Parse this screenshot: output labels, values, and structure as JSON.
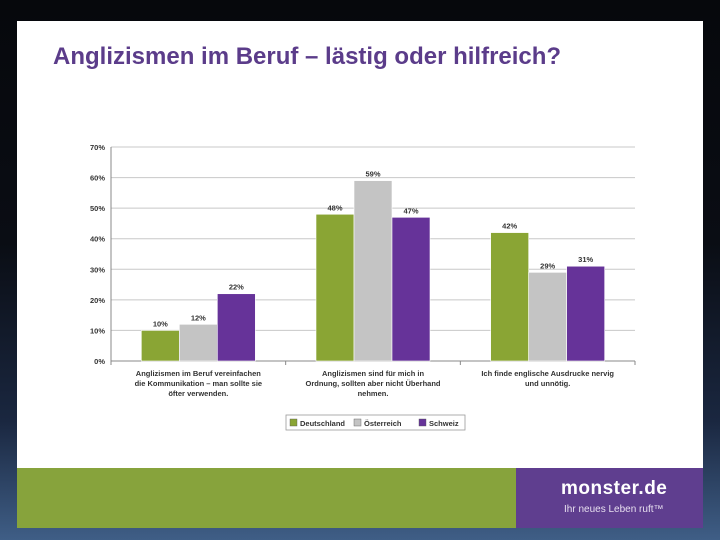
{
  "slide": {
    "title": "Anglizismen im Beruf – lästig oder hilfreich?"
  },
  "branding": {
    "logo_text": "monster.de",
    "tagline": "Ihr neues Leben ruft™",
    "footer_color": "#87a33c",
    "logo_box_color": "#5f3e8f"
  },
  "chart_data": {
    "type": "bar",
    "title": "",
    "xlabel": "",
    "ylabel": "",
    "ylim": [
      0,
      70
    ],
    "yticks": [
      "0%",
      "10%",
      "20%",
      "30%",
      "40%",
      "50%",
      "60%",
      "70%"
    ],
    "grid": true,
    "legend_position": "bottom",
    "categories": [
      [
        "Anglizismen im Beruf vereinfachen",
        "die Kommunikation – man sollte sie",
        "öfter verwenden."
      ],
      [
        "Anglizismen sind für mich in",
        "Ordnung, sollten aber nicht Überhand",
        "nehmen."
      ],
      [
        "Ich finde englische Ausdrucke nervig",
        "und unnötig."
      ]
    ],
    "series": [
      {
        "name": "Deutschland",
        "color": "#8aa534",
        "values": [
          10,
          48,
          42
        ],
        "labels": [
          "10%",
          "48%",
          "42%"
        ]
      },
      {
        "name": "Österreich",
        "color": "#c4c4c4",
        "values": [
          12,
          59,
          29
        ],
        "labels": [
          "12%",
          "59%",
          "29%"
        ]
      },
      {
        "name": "Schweiz",
        "color": "#663399",
        "values": [
          22,
          47,
          31
        ],
        "labels": [
          "22%",
          "47%",
          "31%"
        ]
      }
    ]
  }
}
